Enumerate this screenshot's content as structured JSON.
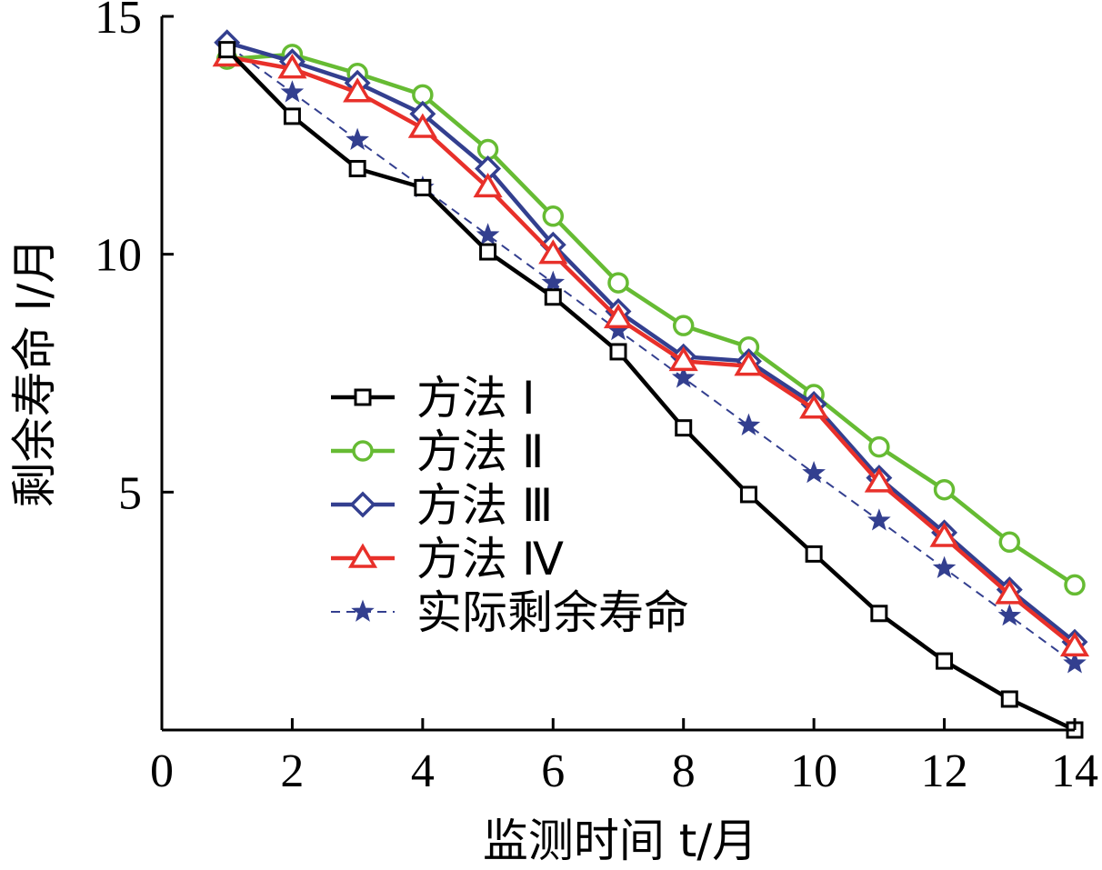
{
  "chart_data": {
    "type": "line",
    "title": "",
    "xlabel": "监测时间 t/月",
    "ylabel": "剩余寿命 l/月",
    "xlim": [
      0,
      14
    ],
    "ylim": [
      0,
      15
    ],
    "x_ticks": [
      0,
      2,
      4,
      6,
      8,
      10,
      12,
      14
    ],
    "y_ticks": [
      5,
      10,
      15
    ],
    "x_tick_labels": [
      "0",
      "2",
      "4",
      "6",
      "8",
      "10",
      "12",
      "14"
    ],
    "y_tick_labels": [
      "5",
      "10",
      "15"
    ],
    "legend_position": "center-left",
    "x": [
      1,
      2,
      3,
      4,
      5,
      6,
      7,
      8,
      9,
      10,
      11,
      12,
      13,
      14
    ],
    "series": [
      {
        "name": "方法 Ⅰ",
        "color": "#000000",
        "marker": "square",
        "dashed": false,
        "values": [
          14.3,
          12.9,
          11.8,
          11.4,
          10.05,
          9.1,
          7.95,
          6.35,
          4.95,
          3.7,
          2.45,
          1.45,
          0.65,
          0.0
        ]
      },
      {
        "name": "方法 Ⅱ",
        "color": "#66bb33",
        "marker": "circle",
        "dashed": false,
        "values": [
          14.1,
          14.2,
          13.8,
          13.35,
          12.2,
          10.8,
          9.4,
          8.5,
          8.05,
          7.05,
          5.95,
          5.05,
          3.95,
          3.05
        ]
      },
      {
        "name": "方法 Ⅲ",
        "color": "#333f8f",
        "marker": "diamond",
        "dashed": false,
        "values": [
          14.45,
          14.05,
          13.6,
          12.95,
          11.8,
          10.2,
          8.8,
          7.85,
          7.75,
          6.85,
          5.3,
          4.15,
          2.95,
          1.85
        ]
      },
      {
        "name": "方法 Ⅳ",
        "color": "#e8302a",
        "marker": "triangle",
        "dashed": false,
        "values": [
          14.15,
          13.9,
          13.4,
          12.65,
          11.4,
          10.0,
          8.65,
          7.75,
          7.65,
          6.75,
          5.2,
          4.05,
          2.85,
          1.75
        ]
      },
      {
        "name": "实际剩余寿命",
        "color": "#333f8f",
        "marker": "star",
        "dashed": true,
        "values": [
          14.4,
          13.4,
          12.4,
          11.4,
          10.4,
          9.4,
          8.4,
          7.4,
          6.4,
          5.4,
          4.4,
          3.4,
          2.4,
          1.4
        ]
      }
    ]
  }
}
